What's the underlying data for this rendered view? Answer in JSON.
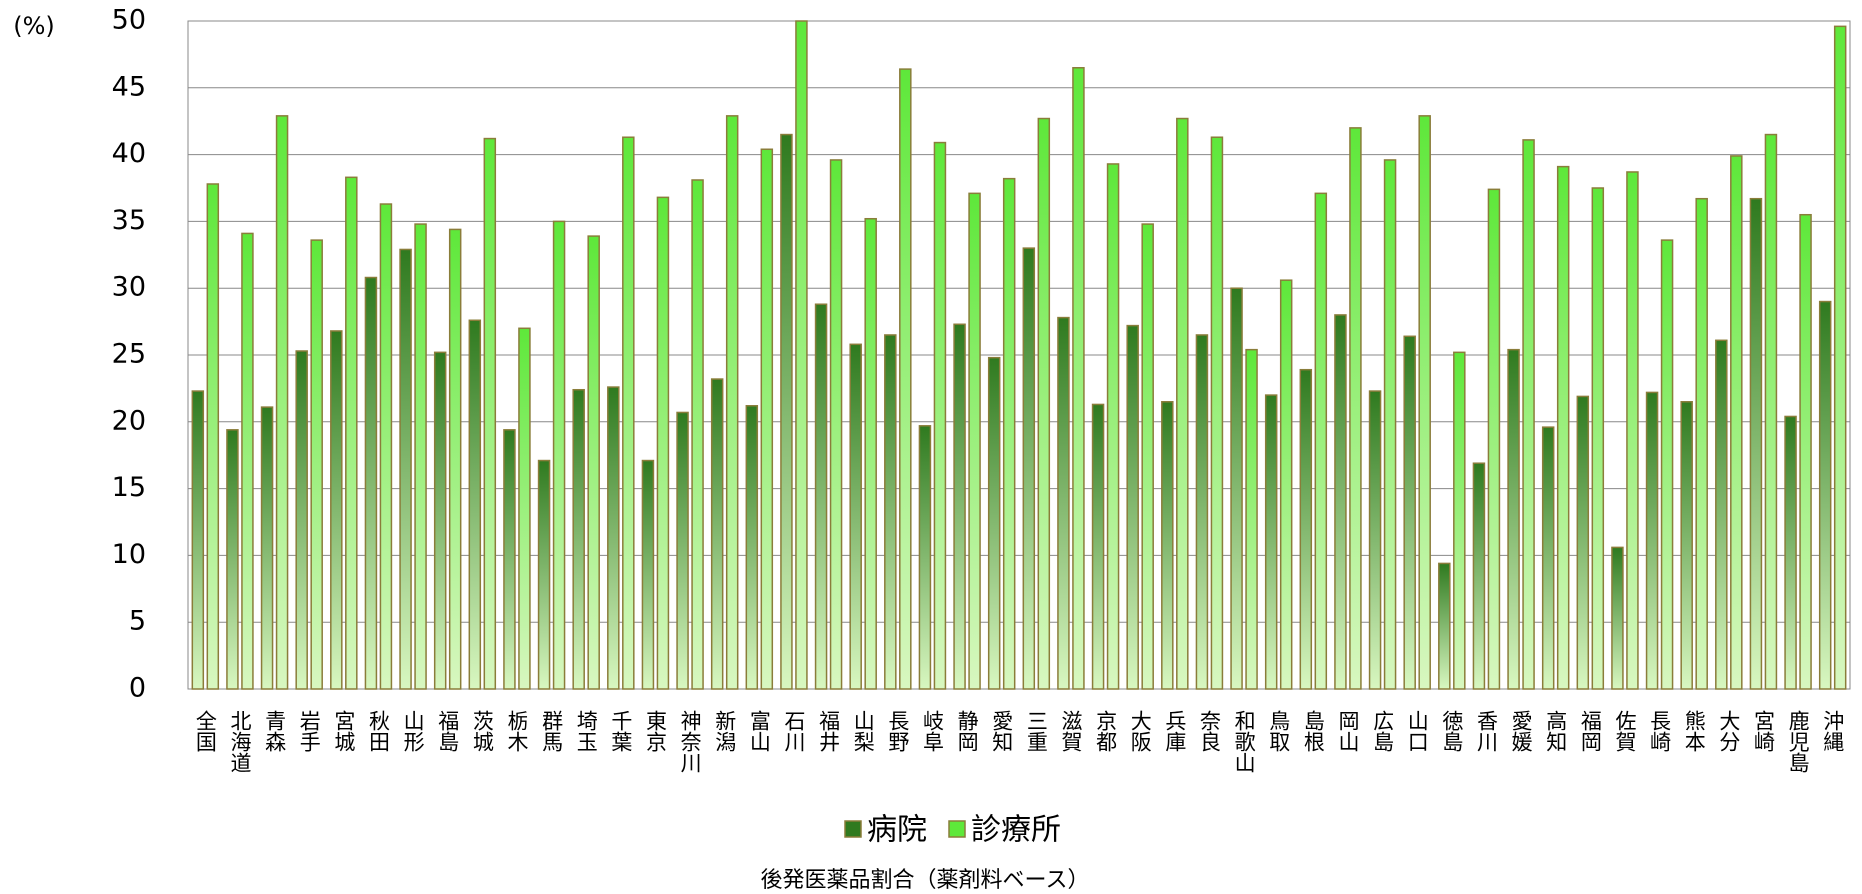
{
  "chart_data": {
    "type": "bar",
    "y_label": "(%)",
    "x_label": "後発医薬品割合（薬剤料ベース）",
    "categories": [
      "全国",
      "北海道",
      "青森",
      "岩手",
      "宮城",
      "秋田",
      "山形",
      "福島",
      "茨城",
      "栃木",
      "群馬",
      "埼玉",
      "千葉",
      "東京",
      "神奈川",
      "新潟",
      "富山",
      "石川",
      "福井",
      "山梨",
      "長野",
      "岐阜",
      "静岡",
      "愛知",
      "三重",
      "滋賀",
      "京都",
      "大阪",
      "兵庫",
      "奈良",
      "和歌山",
      "鳥取",
      "島根",
      "岡山",
      "広島",
      "山口",
      "徳島",
      "香川",
      "愛媛",
      "高知",
      "福岡",
      "佐賀",
      "長崎",
      "熊本",
      "大分",
      "宮崎",
      "鹿児島",
      "沖縄"
    ],
    "series": [
      {
        "name": "病院",
        "color": "#2f7a1f",
        "values": [
          22.3,
          19.4,
          21.1,
          25.3,
          26.8,
          30.8,
          32.9,
          25.2,
          27.6,
          19.4,
          17.1,
          22.4,
          22.6,
          17.1,
          20.7,
          23.2,
          21.2,
          41.5,
          28.8,
          25.8,
          26.5,
          19.7,
          27.3,
          24.8,
          33.0,
          27.8,
          21.3,
          27.2,
          21.5,
          26.5,
          30.0,
          22.0,
          23.9,
          28.0,
          22.3,
          26.4,
          9.4,
          16.9,
          25.4,
          19.6,
          21.9,
          10.6,
          22.2,
          21.5,
          26.1,
          36.7,
          20.4,
          29.0
        ]
      },
      {
        "name": "診療所",
        "color": "#5ee83a",
        "values": [
          37.8,
          34.1,
          42.9,
          33.6,
          38.3,
          36.3,
          34.8,
          34.4,
          41.2,
          27.0,
          35.0,
          33.9,
          41.3,
          36.8,
          38.1,
          42.9,
          40.4,
          50.0,
          39.6,
          35.2,
          46.4,
          40.9,
          37.1,
          38.2,
          42.7,
          46.5,
          39.3,
          34.8,
          42.7,
          41.3,
          25.4,
          30.6,
          37.1,
          42.0,
          39.6,
          42.9,
          25.2,
          37.4,
          41.1,
          39.1,
          37.5,
          38.7,
          33.6,
          36.7,
          39.9,
          41.5,
          35.5,
          49.6
        ]
      }
    ],
    "ylim": [
      0,
      50
    ],
    "yticks": [
      0,
      5,
      10,
      15,
      20,
      25,
      30,
      35,
      40,
      45,
      50
    ],
    "grid": true,
    "legend": "bottom"
  }
}
